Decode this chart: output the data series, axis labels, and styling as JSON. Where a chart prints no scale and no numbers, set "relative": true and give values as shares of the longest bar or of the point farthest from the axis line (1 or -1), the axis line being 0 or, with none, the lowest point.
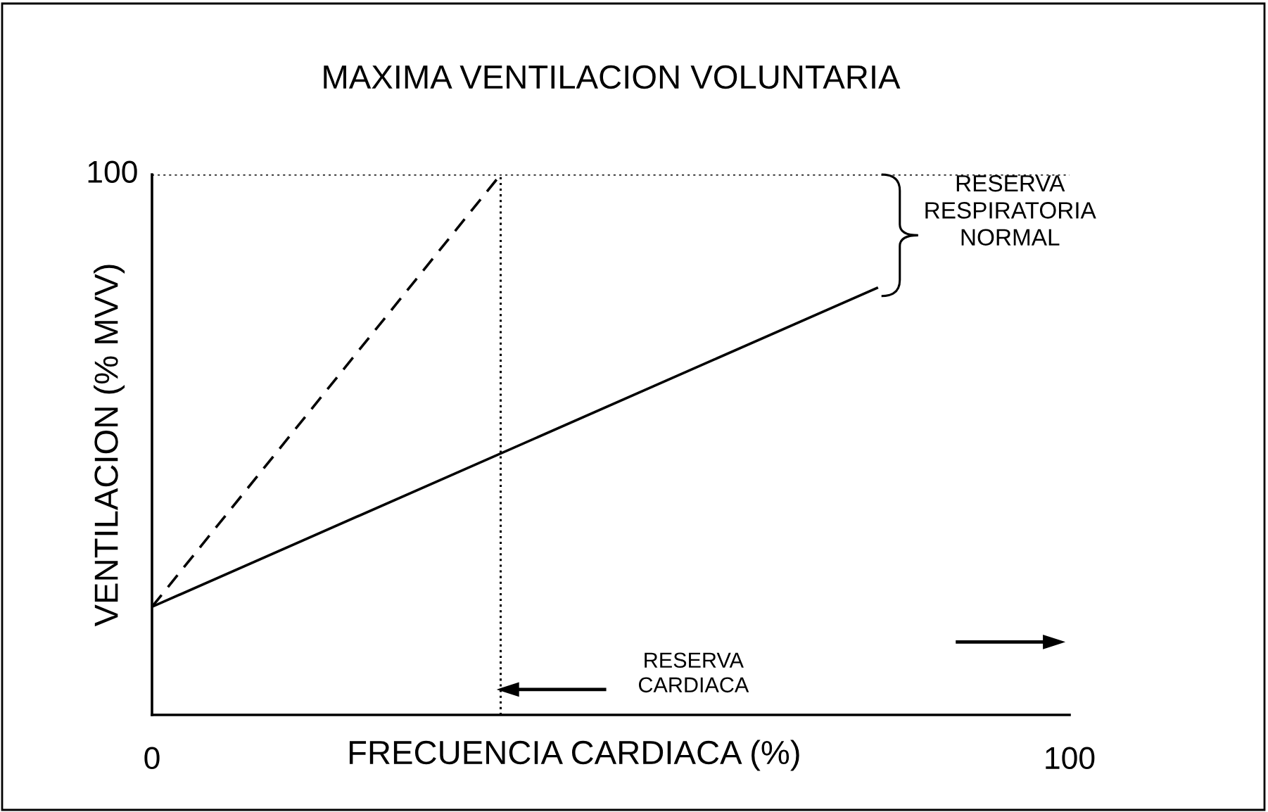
{
  "chart_data": {
    "type": "line",
    "title": "MAXIMA VENTILACION VOLUNTARIA",
    "xlabel": "FRECUENCIA CARDIACA (%)",
    "ylabel": "VENTILACION (% MVV)",
    "relative": true,
    "series": [
      {
        "color": "#000000",
        "line_style": "dashed",
        "x": [
          0,
          38
        ],
        "values": [
          0.2,
          1
        ]
      },
      {
        "color": "#000000",
        "line_style": "solid",
        "x": [
          0,
          79
        ],
        "values": [
          0.2,
          0.79
        ]
      }
    ],
    "xlim": [
      0,
      100
    ],
    "xticks": [
      0,
      100
    ],
    "ref_lines": [
      {
        "axis": "y",
        "value": 1,
        "line_style": "dotted",
        "color": "#000000"
      },
      {
        "axis": "x",
        "value": 38,
        "line_style": "dotted",
        "color": "#000000"
      }
    ],
    "annotations": [
      "100",
      "RESERVA\nRESPIRATORIA\nNORMAL",
      "RESERVA\nCARDIACA"
    ],
    "grid": false,
    "marker": "none"
  }
}
